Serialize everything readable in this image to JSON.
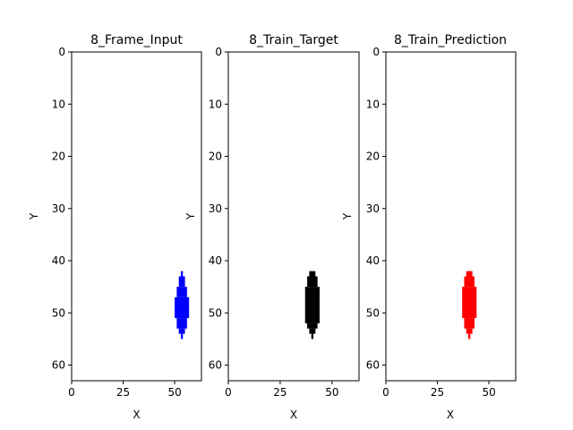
{
  "chart_data": [
    {
      "type": "heatmap",
      "title": "8_Frame_Input",
      "xlabel": "X",
      "ylabel": "Y",
      "xlim": [
        0,
        63
      ],
      "ylim": [
        63,
        0
      ],
      "xticks": [
        0,
        25,
        50
      ],
      "yticks": [
        0,
        10,
        20,
        30,
        40,
        50,
        60
      ],
      "color": "#0000ff",
      "pixels": [
        [
          53,
          42,
          54,
          43
        ],
        [
          52,
          43,
          55,
          45
        ],
        [
          51,
          45,
          56,
          47
        ],
        [
          50,
          47,
          57,
          51
        ],
        [
          51,
          51,
          56,
          53
        ],
        [
          52,
          53,
          55,
          54
        ],
        [
          53,
          54,
          54,
          55
        ]
      ]
    },
    {
      "type": "heatmap",
      "title": "8_Train_Target",
      "xlabel": "X",
      "ylabel": "Y",
      "xlim": [
        0,
        63
      ],
      "ylim": [
        63,
        0
      ],
      "xticks": [
        0,
        25,
        50
      ],
      "yticks": [
        0,
        10,
        20,
        30,
        40,
        50,
        60
      ],
      "color": "#000000",
      "pixels": [
        [
          39,
          42,
          42,
          43
        ],
        [
          38,
          43,
          43,
          45
        ],
        [
          37,
          45,
          44,
          52
        ],
        [
          38,
          52,
          43,
          53
        ],
        [
          39,
          53,
          42,
          54
        ],
        [
          40,
          54,
          41,
          55
        ]
      ]
    },
    {
      "type": "heatmap",
      "title": "8_Train_Prediction",
      "xlabel": "X",
      "ylabel": "Y",
      "xlim": [
        0,
        63
      ],
      "ylim": [
        63,
        0
      ],
      "xticks": [
        0,
        25,
        50
      ],
      "yticks": [
        0,
        10,
        20,
        30,
        40,
        50,
        60
      ],
      "color": "#ff0000",
      "pixels": [
        [
          39,
          42,
          42,
          43
        ],
        [
          38,
          43,
          43,
          45
        ],
        [
          37,
          45,
          44,
          51
        ],
        [
          38,
          51,
          43,
          53
        ],
        [
          39,
          53,
          42,
          54
        ],
        [
          40,
          54,
          41,
          55
        ]
      ]
    }
  ]
}
